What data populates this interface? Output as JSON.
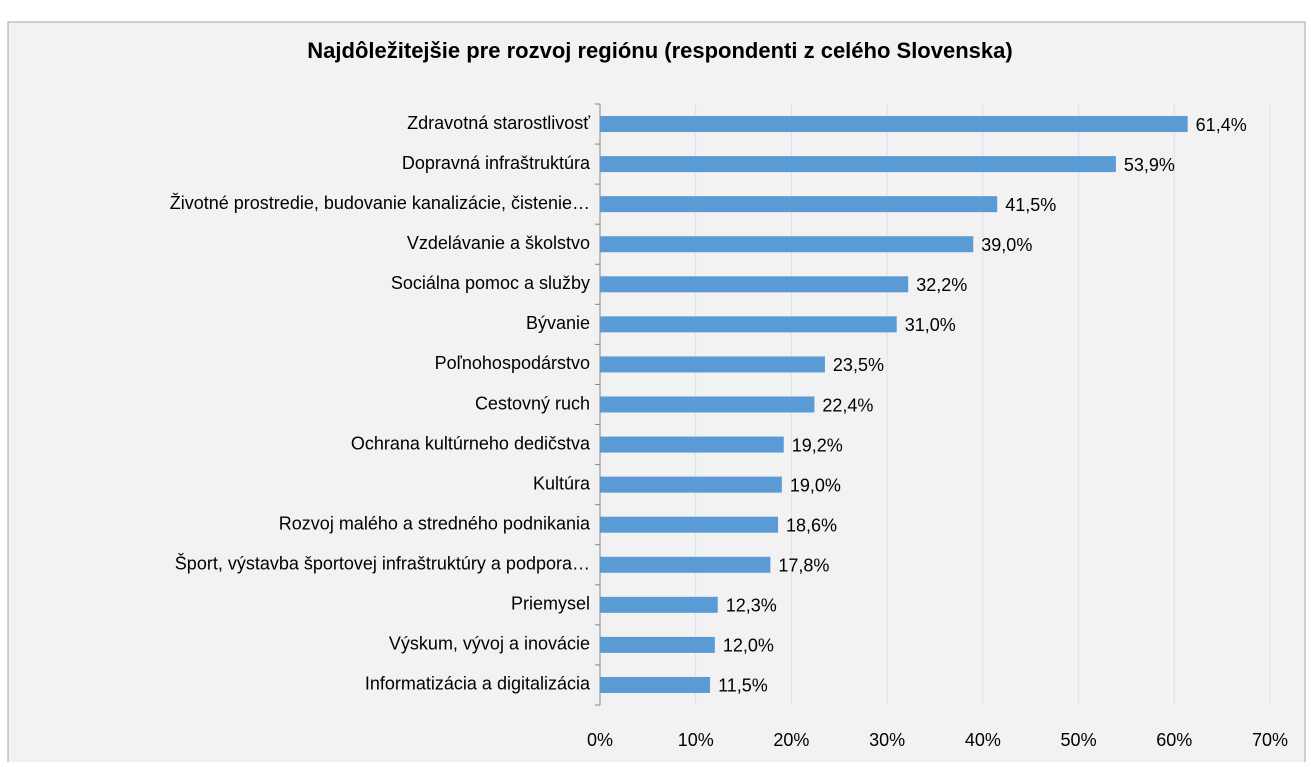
{
  "chart_data": {
    "type": "bar",
    "orientation": "horizontal",
    "title": "Najdôležitejšie pre rozvoj regiónu (respondenti z celého Slovenska)",
    "categories": [
      "Zdravotná starostlivosť",
      "Dopravná infraštruktúra",
      "Životné prostredie, budovanie kanalizácie, čistenie…",
      "Vzdelávanie a školstvo",
      "Sociálna pomoc a služby",
      "Bývanie",
      "Poľnohospodárstvo",
      "Cestovný ruch",
      "Ochrana kultúrneho dedičstva",
      "Kultúra",
      "Rozvoj malého a stredného podnikania",
      "Šport, výstavba športovej infraštruktúry a podpora…",
      "Priemysel",
      "Výskum, vývoj a inovácie",
      "Informatizácia a digitalizácia"
    ],
    "values": [
      61.4,
      53.9,
      41.5,
      39.0,
      32.2,
      31.0,
      23.5,
      22.4,
      19.2,
      19.0,
      18.6,
      17.8,
      12.3,
      12.0,
      11.5
    ],
    "value_labels": [
      "61,4%",
      "53,9%",
      "41,5%",
      "39,0%",
      "32,2%",
      "31,0%",
      "23,5%",
      "22,4%",
      "19,2%",
      "19,0%",
      "18,6%",
      "17,8%",
      "12,3%",
      "12,0%",
      "11,5%"
    ],
    "color": "#5b9bd5",
    "xlim": [
      0,
      70
    ],
    "xticks": [
      {
        "value": 0,
        "label": "0%"
      },
      {
        "value": 10,
        "label": "10%"
      },
      {
        "value": 20,
        "label": "20%"
      },
      {
        "value": 30,
        "label": "30%"
      },
      {
        "value": 40,
        "label": "40%"
      },
      {
        "value": 50,
        "label": "50%"
      },
      {
        "value": 60,
        "label": "60%"
      },
      {
        "value": 70,
        "label": "70%"
      }
    ],
    "grid": true
  }
}
